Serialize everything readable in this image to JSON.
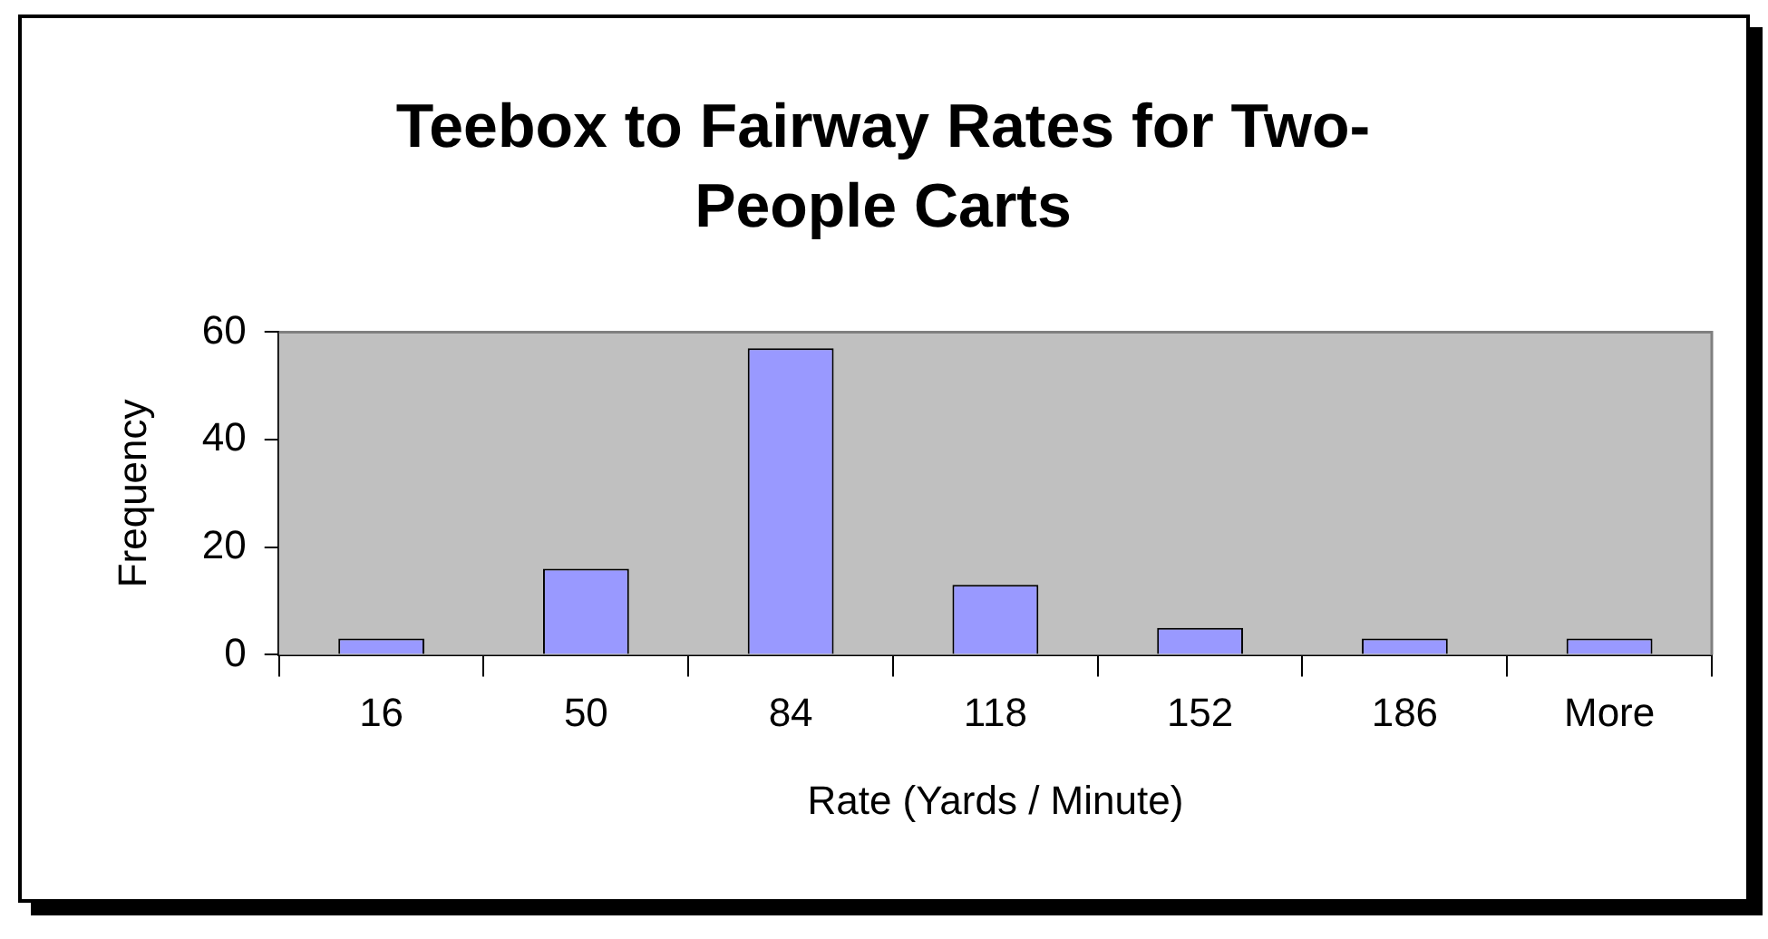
{
  "chart_data": {
    "type": "bar",
    "title": "Teebox to Fairway Rates for Two-People Carts",
    "xlabel": "Rate (Yards / Minute)",
    "ylabel": "Frequency",
    "categories": [
      "16",
      "50",
      "84",
      "118",
      "152",
      "186",
      "More"
    ],
    "values": [
      3,
      16,
      57,
      13,
      5,
      3,
      3
    ],
    "color": "#9999ff",
    "ylim": [
      0,
      60
    ],
    "yticks": [
      0,
      20,
      40,
      60
    ],
    "legend": false
  }
}
